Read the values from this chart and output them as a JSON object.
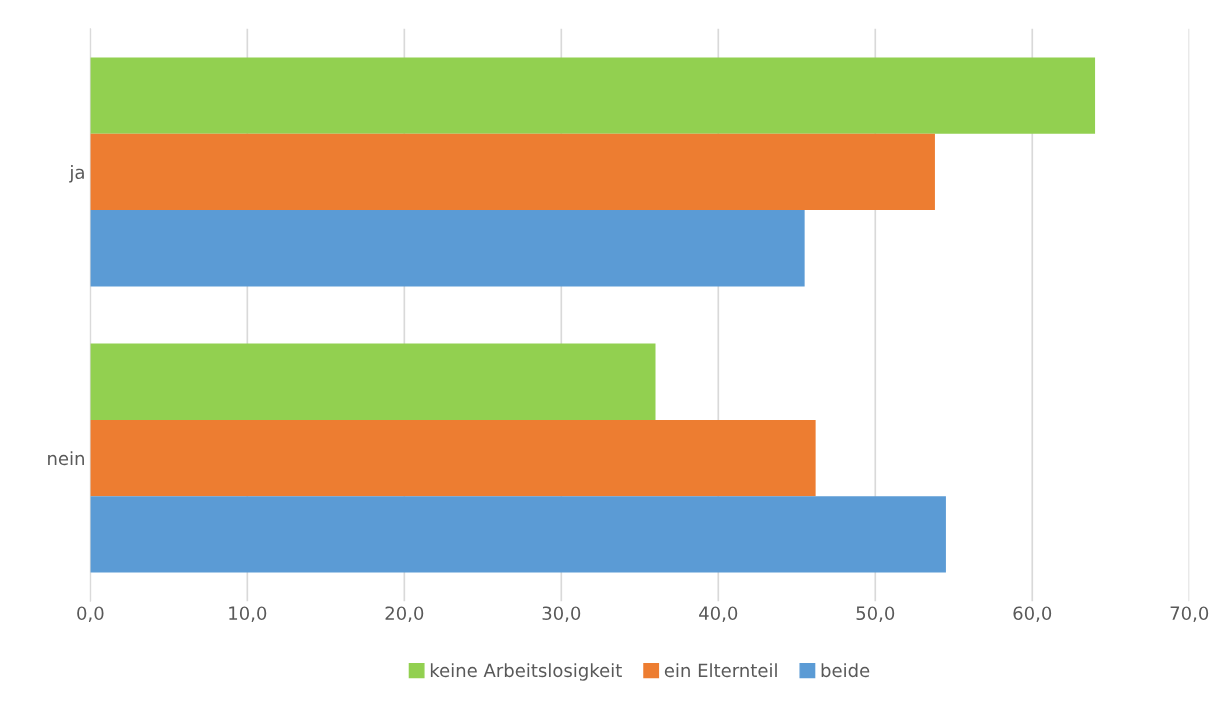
{
  "chart_data": {
    "type": "bar",
    "orientation": "horizontal",
    "categories": [
      "ja",
      "nein"
    ],
    "series": [
      {
        "name": "keine Arbeitslosigkeit",
        "color": "#92d050",
        "values": [
          64.0,
          36.0
        ]
      },
      {
        "name": "ein Elternteil",
        "color": "#ed7d31",
        "values": [
          53.8,
          46.2
        ]
      },
      {
        "name": "beide",
        "color": "#5b9bd5",
        "values": [
          45.5,
          54.5
        ]
      }
    ],
    "xlim": [
      0,
      70
    ],
    "xticks": [
      {
        "value": 0,
        "label": "0,0"
      },
      {
        "value": 10,
        "label": "10,0"
      },
      {
        "value": 20,
        "label": "20,0"
      },
      {
        "value": 30,
        "label": "30,0"
      },
      {
        "value": 40,
        "label": "40,0"
      },
      {
        "value": 50,
        "label": "50,0"
      },
      {
        "value": 60,
        "label": "60,0"
      },
      {
        "value": 70,
        "label": "70,0"
      }
    ],
    "grid": "x",
    "legend": "bottom"
  }
}
